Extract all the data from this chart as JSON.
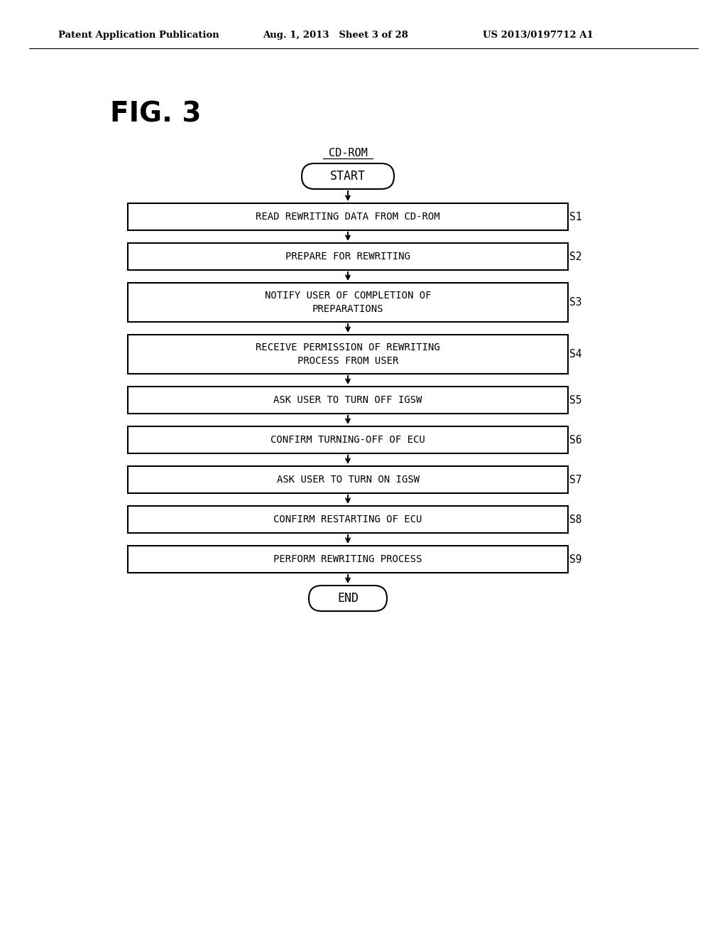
{
  "fig_label": "FIG. 3",
  "header_left": "Patent Application Publication",
  "header_mid": "Aug. 1, 2013   Sheet 3 of 28",
  "header_right": "US 2013/0197712 A1",
  "cd_rom_label": "CD-ROM",
  "start_label": "START",
  "end_label": "END",
  "steps": [
    {
      "label": "READ REWRITING DATA FROM CD-ROM",
      "step": "S1",
      "lines": 1
    },
    {
      "label": "PREPARE FOR REWRITING",
      "step": "S2",
      "lines": 1
    },
    {
      "label": "NOTIFY USER OF COMPLETION OF\nPREPARATIONS",
      "step": "S3",
      "lines": 2
    },
    {
      "label": "RECEIVE PERMISSION OF REWRITING\nPROCESS FROM USER",
      "step": "S4",
      "lines": 2
    },
    {
      "label": "ASK USER TO TURN OFF IGSW",
      "step": "S5",
      "lines": 1
    },
    {
      "label": "CONFIRM TURNING-OFF OF ECU",
      "step": "S6",
      "lines": 1
    },
    {
      "label": "ASK USER TO TURN ON IGSW",
      "step": "S7",
      "lines": 1
    },
    {
      "label": "CONFIRM RESTARTING OF ECU",
      "step": "S8",
      "lines": 1
    },
    {
      "label": "PERFORM REWRITING PROCESS",
      "step": "S9",
      "lines": 1
    }
  ],
  "background_color": "#ffffff",
  "box_edge_color": "#000000",
  "text_color": "#000000",
  "arrow_color": "#000000"
}
